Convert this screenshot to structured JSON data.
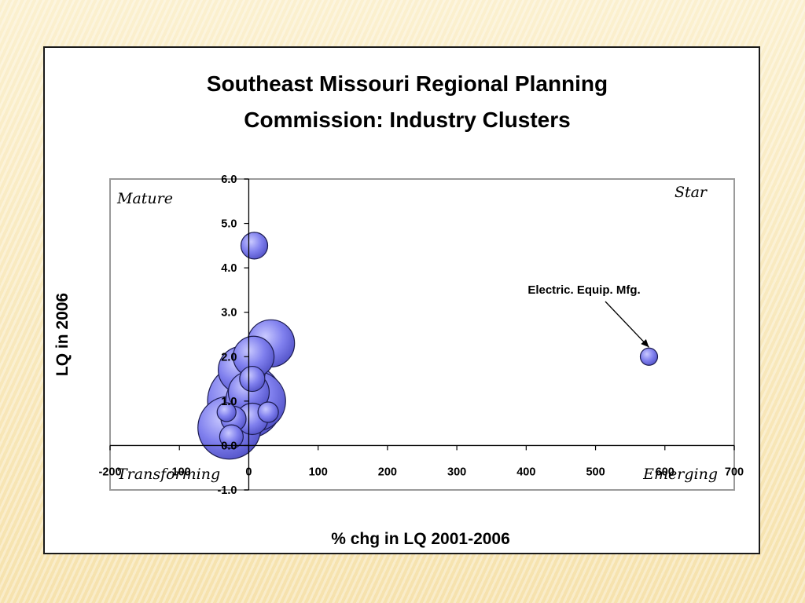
{
  "chart_data": {
    "type": "scatter",
    "subtype": "bubble",
    "title_lines": [
      "Southeast Missouri Regional Planning",
      "Commission: Industry Clusters"
    ],
    "xlabel": "% chg in LQ 2001-2006",
    "ylabel": "LQ in 2006",
    "xlim": [
      -200,
      700
    ],
    "ylim": [
      -1.0,
      6.0
    ],
    "x_ticks": [
      "-200",
      "-100",
      "0",
      "100",
      "200",
      "300",
      "400",
      "500",
      "600",
      "700"
    ],
    "y_ticks": [
      "6.0",
      "5.0",
      "4.0",
      "3.0",
      "2.0",
      "1.0",
      "0.0",
      "-1.0"
    ],
    "grid": false,
    "bubble_color": "#8080ee",
    "bubble_stroke": "#1c1c50",
    "quadrant_labels": {
      "top_left": "Mature",
      "top_right": "Star",
      "bottom_left": "Transforming",
      "bottom_right": "Emerging"
    },
    "annotation": {
      "text": "Electric. Equip. Mfg.",
      "target_x": 577,
      "target_y": 2.0
    },
    "points": [
      {
        "x": -28,
        "y": 0.4,
        "size": 40
      },
      {
        "x": -5,
        "y": 1.0,
        "size": 48
      },
      {
        "x": 10,
        "y": 1.0,
        "size": 38
      },
      {
        "x": -10,
        "y": 1.7,
        "size": 30
      },
      {
        "x": 32,
        "y": 2.3,
        "size": 30
      },
      {
        "x": 7,
        "y": 2.0,
        "size": 26
      },
      {
        "x": 0,
        "y": 1.2,
        "size": 26
      },
      {
        "x": 5,
        "y": 0.6,
        "size": 20
      },
      {
        "x": -25,
        "y": 0.2,
        "size": 15
      },
      {
        "x": -32,
        "y": 0.75,
        "size": 12
      },
      {
        "x": -22,
        "y": 0.6,
        "size": 16
      },
      {
        "x": 28,
        "y": 0.75,
        "size": 13
      },
      {
        "x": 5,
        "y": 1.5,
        "size": 16
      },
      {
        "x": 8,
        "y": 4.5,
        "size": 17
      },
      {
        "x": 577,
        "y": 2.0,
        "size": 11
      }
    ]
  }
}
